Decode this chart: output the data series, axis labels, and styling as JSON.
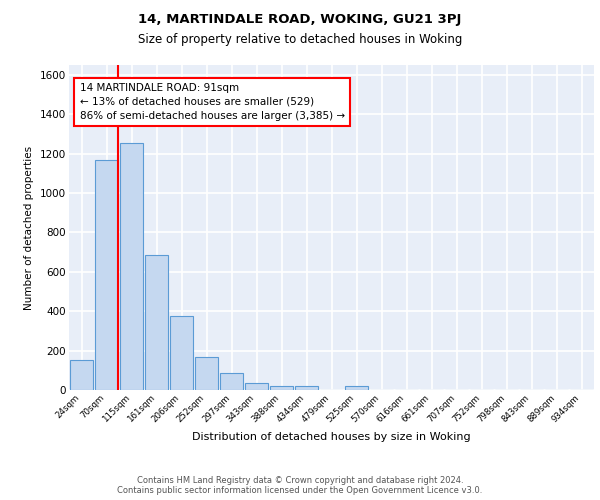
{
  "title1": "14, MARTINDALE ROAD, WOKING, GU21 3PJ",
  "title2": "Size of property relative to detached houses in Woking",
  "xlabel": "Distribution of detached houses by size in Woking",
  "ylabel": "Number of detached properties",
  "categories": [
    "24sqm",
    "70sqm",
    "115sqm",
    "161sqm",
    "206sqm",
    "252sqm",
    "297sqm",
    "343sqm",
    "388sqm",
    "434sqm",
    "479sqm",
    "525sqm",
    "570sqm",
    "616sqm",
    "661sqm",
    "707sqm",
    "752sqm",
    "798sqm",
    "843sqm",
    "889sqm",
    "934sqm"
  ],
  "values": [
    150,
    1170,
    1255,
    685,
    375,
    170,
    85,
    35,
    22,
    22,
    0,
    18,
    0,
    0,
    0,
    0,
    0,
    0,
    0,
    0,
    0
  ],
  "bar_color": "#c5d8f0",
  "bar_edge_color": "#5b9bd5",
  "red_line_x": 1.45,
  "annotation_text": "14 MARTINDALE ROAD: 91sqm\n← 13% of detached houses are smaller (529)\n86% of semi-detached houses are larger (3,385) →",
  "annotation_box_color": "white",
  "annotation_box_edge_color": "red",
  "ylim": [
    0,
    1650
  ],
  "yticks": [
    0,
    200,
    400,
    600,
    800,
    1000,
    1200,
    1400,
    1600
  ],
  "background_color": "#e8eef8",
  "grid_color": "white",
  "footer_line1": "Contains HM Land Registry data © Crown copyright and database right 2024.",
  "footer_line2": "Contains public sector information licensed under the Open Government Licence v3.0."
}
